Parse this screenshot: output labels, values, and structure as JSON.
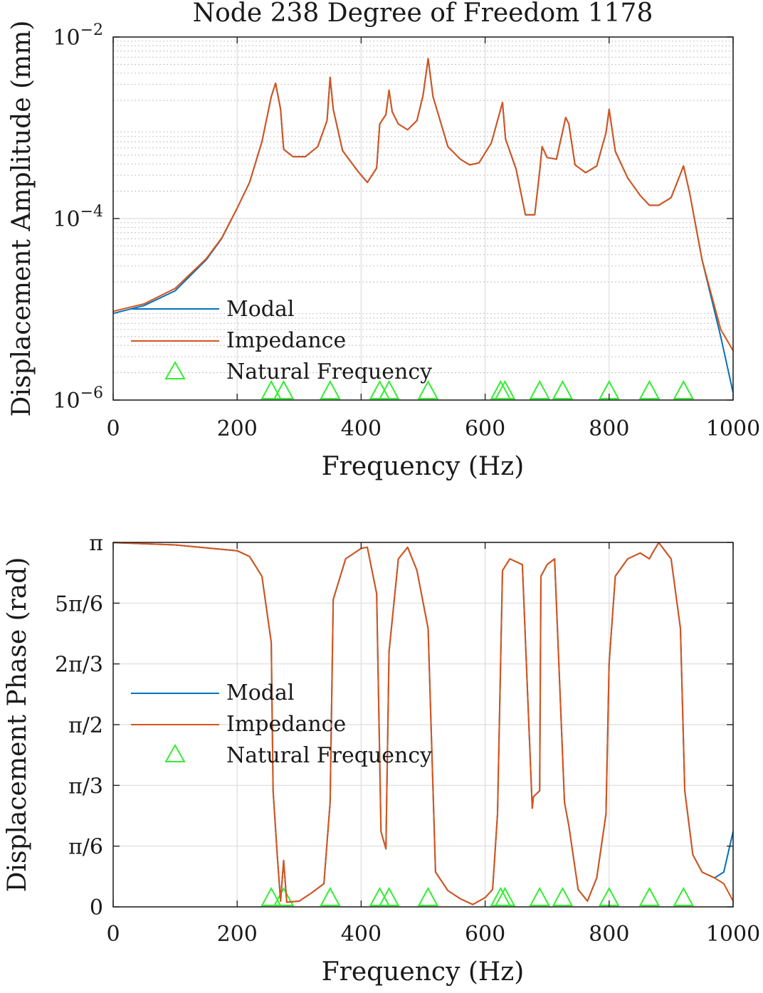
{
  "colors": {
    "modal": "#0072bd",
    "impedance": "#d95319",
    "natural_frequency": "#33ee33",
    "grid_major": "#dcdcdc",
    "grid_minor": "#bdbdbd",
    "axes": "#262626"
  },
  "chart_data": [
    {
      "type": "line",
      "title": "Node 238 Degree of Freedom 1178",
      "xlabel": "Frequency (Hz)",
      "ylabel": "Displacement Amplitude (mm)",
      "xlim": [
        0,
        1000
      ],
      "ylim": [
        1e-06,
        0.01
      ],
      "yscale": "log",
      "xticks": [
        0,
        200,
        400,
        600,
        800,
        1000
      ],
      "xtick_labels": [
        "0",
        "200",
        "400",
        "600",
        "800",
        "1000"
      ],
      "ytick_values": [
        1e-06,
        0.0001,
        0.01
      ],
      "ytick_labels": [
        {
          "base": "10",
          "exp": "−6"
        },
        {
          "base": "10",
          "exp": "−4"
        },
        {
          "base": "10",
          "exp": "−2"
        }
      ],
      "grid": true,
      "minor_grid_y": true,
      "legend": [
        "Modal",
        "Impedance",
        "Natural Frequency"
      ],
      "legend_location": "lower-left",
      "series": [
        {
          "name": "Modal",
          "x": [
            0,
            50,
            100,
            150,
            175,
            200,
            220,
            240,
            255,
            262,
            270,
            275,
            290,
            310,
            330,
            345,
            350,
            355,
            370,
            395,
            410,
            425,
            430,
            440,
            445,
            450,
            460,
            475,
            490,
            500,
            508,
            516,
            540,
            560,
            575,
            590,
            610,
            625,
            628,
            633,
            650,
            665,
            680,
            688,
            692,
            700,
            715,
            730,
            735,
            745,
            762,
            780,
            795,
            800,
            810,
            830,
            850,
            865,
            870,
            880,
            900,
            915,
            920,
            930,
            950,
            980,
            1000
          ],
          "y": [
            9e-06,
            1.1e-05,
            1.6e-05,
            3.5e-05,
            6e-05,
            0.00013,
            0.00025,
            0.0007,
            0.0022,
            0.0031,
            0.0016,
            0.00058,
            0.00048,
            0.00048,
            0.00062,
            0.0012,
            0.0036,
            0.0016,
            0.00056,
            0.00033,
            0.00025,
            0.00036,
            0.0011,
            0.0014,
            0.0026,
            0.0015,
            0.0011,
            0.00095,
            0.0012,
            0.0023,
            0.0058,
            0.0022,
            0.00062,
            0.00045,
            0.00039,
            0.00041,
            0.00068,
            0.0016,
            0.0019,
            0.00075,
            0.00035,
            0.00011,
            0.00011,
            0.00033,
            0.00062,
            0.00047,
            0.00045,
            0.0013,
            0.0011,
            0.00039,
            0.00032,
            0.00038,
            0.00088,
            0.0016,
            0.00055,
            0.00028,
            0.00018,
            0.00014,
            0.00014,
            0.00014,
            0.00017,
            0.00031,
            0.00038,
            0.00019,
            3.5e-05,
            5e-06,
            1.2e-06
          ]
        },
        {
          "name": "Impedance",
          "x": [
            0,
            50,
            100,
            150,
            175,
            200,
            220,
            240,
            255,
            262,
            270,
            275,
            290,
            310,
            330,
            345,
            350,
            355,
            370,
            395,
            410,
            425,
            430,
            440,
            445,
            450,
            460,
            475,
            490,
            500,
            508,
            516,
            540,
            560,
            575,
            590,
            610,
            625,
            628,
            633,
            650,
            665,
            680,
            688,
            692,
            700,
            715,
            730,
            735,
            745,
            762,
            780,
            795,
            800,
            810,
            830,
            850,
            865,
            870,
            880,
            900,
            915,
            920,
            930,
            950,
            980,
            1000
          ],
          "y": [
            9.5e-06,
            1.15e-05,
            1.7e-05,
            3.6e-05,
            6.1e-05,
            0.00013,
            0.00025,
            0.0007,
            0.0022,
            0.0031,
            0.0016,
            0.00058,
            0.00048,
            0.00048,
            0.00062,
            0.0012,
            0.0036,
            0.0016,
            0.00056,
            0.00033,
            0.00025,
            0.00036,
            0.0011,
            0.0014,
            0.0026,
            0.0015,
            0.0011,
            0.00095,
            0.0012,
            0.0023,
            0.0058,
            0.0022,
            0.00062,
            0.00045,
            0.00039,
            0.00041,
            0.00068,
            0.0016,
            0.0019,
            0.00075,
            0.00035,
            0.00011,
            0.00011,
            0.00033,
            0.00062,
            0.00047,
            0.00045,
            0.0013,
            0.0011,
            0.00039,
            0.00032,
            0.00038,
            0.00088,
            0.0016,
            0.00055,
            0.00028,
            0.00018,
            0.00014,
            0.00014,
            0.00014,
            0.00017,
            0.00031,
            0.00038,
            0.00019,
            3.5e-05,
            6e-06,
            3.5e-06
          ]
        }
      ],
      "natural_frequencies": [
        255,
        275,
        350,
        430,
        445,
        508,
        625,
        632,
        688,
        725,
        800,
        865,
        920
      ]
    },
    {
      "type": "line",
      "xlabel": "Frequency (Hz)",
      "ylabel": "Displacement Phase (rad)",
      "xlim": [
        0,
        1000
      ],
      "ylim": [
        0,
        3.14159
      ],
      "xticks": [
        0,
        200,
        400,
        600,
        800,
        1000
      ],
      "xtick_labels": [
        "0",
        "200",
        "400",
        "600",
        "800",
        "1000"
      ],
      "ytick_values": [
        0,
        0.5236,
        1.0472,
        1.5708,
        2.0944,
        2.618,
        3.1416
      ],
      "ytick_labels": [
        "0",
        "π/6",
        "π/3",
        "π/2",
        "2π/3",
        "5π/6",
        "π"
      ],
      "grid": true,
      "legend": [
        "Modal",
        "Impedance",
        "Natural Frequency"
      ],
      "legend_location": "center-left",
      "series": [
        {
          "name": "Modal",
          "x": [
            0,
            100,
            200,
            220,
            240,
            255,
            258,
            265,
            270,
            275,
            280,
            300,
            320,
            340,
            350,
            355,
            375,
            400,
            410,
            425,
            432,
            440,
            445,
            460,
            475,
            490,
            508,
            520,
            540,
            560,
            580,
            600,
            612,
            620,
            628,
            640,
            660,
            676,
            678,
            688,
            690,
            700,
            712,
            728,
            735,
            750,
            765,
            780,
            795,
            800,
            810,
            830,
            850,
            865,
            870,
            880,
            900,
            915,
            922,
            935,
            950,
            970,
            985,
            1000
          ],
          "y": [
            3.14,
            3.12,
            3.07,
            3.02,
            2.85,
            2.28,
            1.0,
            0.42,
            0.05,
            0.4,
            0.04,
            0.05,
            0.12,
            0.2,
            0.9,
            2.65,
            3.0,
            3.09,
            3.1,
            2.7,
            0.65,
            0.5,
            2.2,
            3.0,
            3.1,
            2.9,
            2.4,
            0.3,
            0.14,
            0.07,
            0.02,
            0.08,
            0.15,
            0.8,
            2.9,
            3.0,
            2.95,
            0.85,
            0.95,
            1.0,
            2.85,
            2.95,
            3.0,
            0.9,
            0.7,
            0.15,
            0.05,
            0.25,
            0.8,
            2.1,
            2.85,
            3.0,
            3.05,
            3.0,
            3.05,
            3.14,
            3.0,
            2.4,
            1.0,
            0.45,
            0.3,
            0.25,
            0.3,
            0.65
          ]
        },
        {
          "name": "Impedance",
          "x": [
            0,
            100,
            200,
            220,
            240,
            255,
            258,
            265,
            270,
            275,
            280,
            300,
            320,
            340,
            350,
            355,
            375,
            400,
            410,
            425,
            432,
            440,
            445,
            460,
            475,
            490,
            508,
            520,
            540,
            560,
            580,
            600,
            612,
            620,
            628,
            640,
            660,
            676,
            678,
            688,
            690,
            700,
            712,
            728,
            735,
            750,
            765,
            780,
            795,
            800,
            810,
            830,
            850,
            865,
            870,
            880,
            900,
            915,
            922,
            935,
            950,
            970,
            985,
            1000
          ],
          "y": [
            3.14,
            3.12,
            3.07,
            3.02,
            2.85,
            2.28,
            1.0,
            0.42,
            0.05,
            0.4,
            0.04,
            0.05,
            0.12,
            0.2,
            0.9,
            2.65,
            3.0,
            3.09,
            3.1,
            2.7,
            0.65,
            0.5,
            2.2,
            3.0,
            3.1,
            2.9,
            2.4,
            0.3,
            0.14,
            0.07,
            0.02,
            0.08,
            0.15,
            0.8,
            2.9,
            3.0,
            2.95,
            0.85,
            0.95,
            1.0,
            2.85,
            2.95,
            3.0,
            0.9,
            0.7,
            0.15,
            0.05,
            0.25,
            0.8,
            2.1,
            2.85,
            3.0,
            3.05,
            3.0,
            3.05,
            3.14,
            3.0,
            2.4,
            1.0,
            0.45,
            0.3,
            0.25,
            0.2,
            0.05
          ]
        }
      ],
      "natural_frequencies": [
        255,
        275,
        350,
        430,
        445,
        508,
        625,
        632,
        688,
        725,
        800,
        865,
        920
      ]
    }
  ]
}
